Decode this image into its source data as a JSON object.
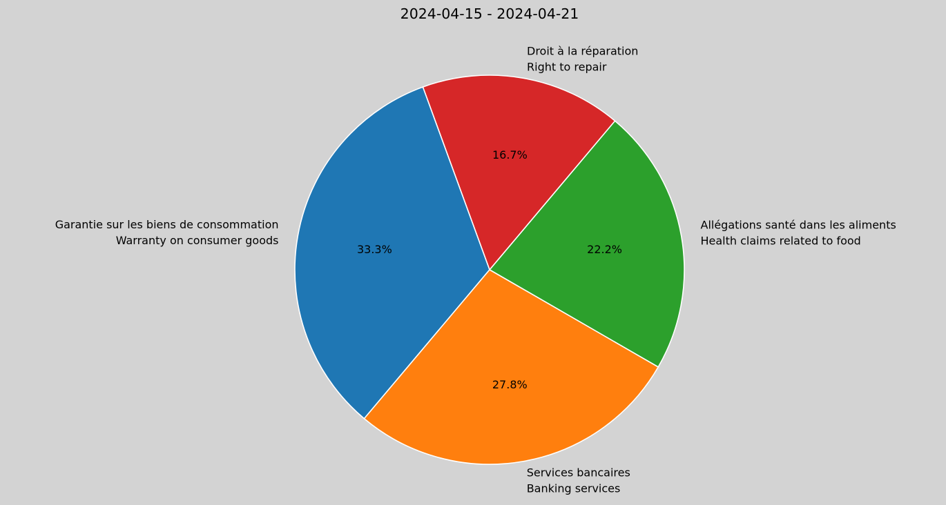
{
  "title": "2024-04-15 - 2024-04-21",
  "background_color": "#d3d3d3",
  "text_color": "#000000",
  "chart_data": {
    "type": "pie",
    "title": "2024-04-15 - 2024-04-21",
    "legend": "none",
    "start_angle_deg": -30,
    "direction": "counterclockwise",
    "wedge_edge_color": "#ffffff",
    "slices": [
      {
        "id": "health-claims-food",
        "label_lines": [
          "Allégations santé dans les aliments",
          "Health claims related to food"
        ],
        "value_percent": 22.2,
        "pct_label": "22.2%",
        "color": "#2ca02c"
      },
      {
        "id": "right-to-repair",
        "label_lines": [
          "Droit à la réparation",
          "Right to repair"
        ],
        "value_percent": 16.7,
        "pct_label": "16.7%",
        "color": "#d62728"
      },
      {
        "id": "warranty-consumer-goods",
        "label_lines": [
          "Garantie sur les biens de consommation",
          "Warranty on consumer goods"
        ],
        "value_percent": 33.3,
        "pct_label": "33.3%",
        "color": "#1f77b4"
      },
      {
        "id": "banking-services",
        "label_lines": [
          "Services bancaires",
          "Banking services"
        ],
        "value_percent": 27.8,
        "pct_label": "27.8%",
        "color": "#ff7f0e"
      }
    ]
  }
}
